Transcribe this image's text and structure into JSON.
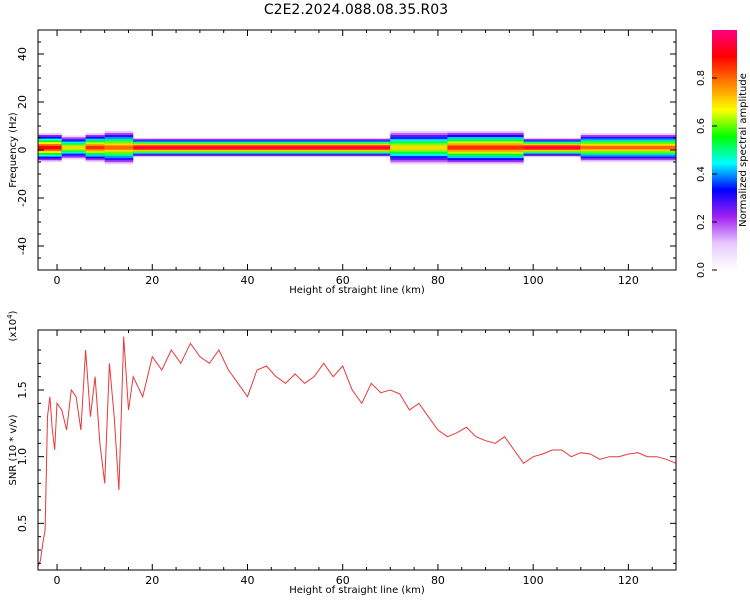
{
  "title": "C2E2.2024.088.08.35.R03",
  "chart_data": [
    {
      "type": "heatmap",
      "name": "spectrogram",
      "xlabel": "Height of straight line (km)",
      "ylabel": "Frequency (Hz)",
      "xlim": [
        -4,
        130
      ],
      "ylim": [
        -50,
        50
      ],
      "xticks": [
        0,
        20,
        40,
        60,
        80,
        100,
        120
      ],
      "yticks": [
        -40,
        -20,
        0,
        20,
        40
      ],
      "ytick_labels": [
        "-40",
        "-20",
        "0",
        "20",
        "40"
      ],
      "colorbar": {
        "label": "Normalized spectral amplitude",
        "range": [
          0,
          1
        ],
        "ticks": [
          0.0,
          0.2,
          0.4,
          0.6,
          0.8
        ],
        "tick_labels": [
          "0.0",
          "0.2",
          "0.4",
          "0.6",
          "0.8"
        ],
        "colors": [
          "#ffffff",
          "#e6c8ff",
          "#a020f0",
          "#0000ff",
          "#00ffff",
          "#00ff00",
          "#ffff00",
          "#ff8000",
          "#ff0000",
          "#ff0080"
        ]
      },
      "band_centre_hz": 1,
      "segments": [
        {
          "x": [
            -4,
            1
          ],
          "halfwidth_hz": 6,
          "peak": 0.9
        },
        {
          "x": [
            1,
            6
          ],
          "halfwidth_hz": 5,
          "peak": 0.7
        },
        {
          "x": [
            6,
            10
          ],
          "halfwidth_hz": 6,
          "peak": 0.85
        },
        {
          "x": [
            10,
            16
          ],
          "halfwidth_hz": 7,
          "peak": 0.8
        },
        {
          "x": [
            16,
            70
          ],
          "halfwidth_hz": 4,
          "peak": 0.95
        },
        {
          "x": [
            70,
            82
          ],
          "halfwidth_hz": 7,
          "peak": 0.7
        },
        {
          "x": [
            82,
            98
          ],
          "halfwidth_hz": 7,
          "peak": 0.85
        },
        {
          "x": [
            98,
            110
          ],
          "halfwidth_hz": 4,
          "peak": 0.95
        },
        {
          "x": [
            110,
            130
          ],
          "halfwidth_hz": 6,
          "peak": 0.8
        }
      ]
    },
    {
      "type": "line",
      "name": "snr",
      "xlabel": "Height of straight line (km)",
      "ylabel": "SNR (10 * v/v)",
      "multiplier_label": "(x10",
      "multiplier_exp": "4",
      "xlim": [
        -4,
        130
      ],
      "ylim": [
        0.15,
        1.95
      ],
      "xticks": [
        0,
        20,
        40,
        60,
        80,
        100,
        120
      ],
      "yticks": [
        0.5,
        1.0,
        1.5
      ],
      "ytick_labels": [
        "0.5",
        "1.0",
        "1.5"
      ],
      "color": "#e8383a",
      "x": [
        -4,
        -3.5,
        -3,
        -2.5,
        -2,
        -1.5,
        -1,
        -0.5,
        0,
        1,
        2,
        3,
        4,
        5,
        6,
        7,
        8,
        9,
        10,
        11,
        12,
        13,
        14,
        15,
        16,
        18,
        20,
        22,
        24,
        26,
        28,
        30,
        32,
        34,
        36,
        38,
        40,
        42,
        44,
        46,
        48,
        50,
        52,
        54,
        56,
        58,
        60,
        62,
        64,
        66,
        68,
        70,
        72,
        74,
        76,
        78,
        80,
        82,
        84,
        86,
        88,
        90,
        92,
        94,
        96,
        98,
        100,
        102,
        104,
        106,
        108,
        110,
        112,
        114,
        116,
        118,
        120,
        122,
        124,
        126,
        128,
        130
      ],
      "y": [
        0.18,
        0.22,
        0.35,
        0.45,
        1.3,
        1.45,
        1.2,
        1.05,
        1.4,
        1.35,
        1.2,
        1.5,
        1.45,
        1.2,
        1.8,
        1.3,
        1.6,
        1.1,
        0.8,
        1.7,
        1.3,
        0.75,
        1.9,
        1.35,
        1.6,
        1.45,
        1.75,
        1.65,
        1.8,
        1.7,
        1.85,
        1.75,
        1.7,
        1.8,
        1.65,
        1.55,
        1.45,
        1.65,
        1.68,
        1.6,
        1.55,
        1.62,
        1.55,
        1.6,
        1.7,
        1.6,
        1.68,
        1.5,
        1.4,
        1.55,
        1.48,
        1.5,
        1.47,
        1.35,
        1.4,
        1.3,
        1.2,
        1.15,
        1.18,
        1.22,
        1.15,
        1.12,
        1.1,
        1.15,
        1.05,
        0.95,
        1.0,
        1.02,
        1.05,
        1.05,
        1.0,
        1.03,
        1.02,
        0.98,
        1.0,
        1.0,
        1.02,
        1.03,
        1.0,
        1.0,
        0.98,
        0.95
      ]
    }
  ]
}
